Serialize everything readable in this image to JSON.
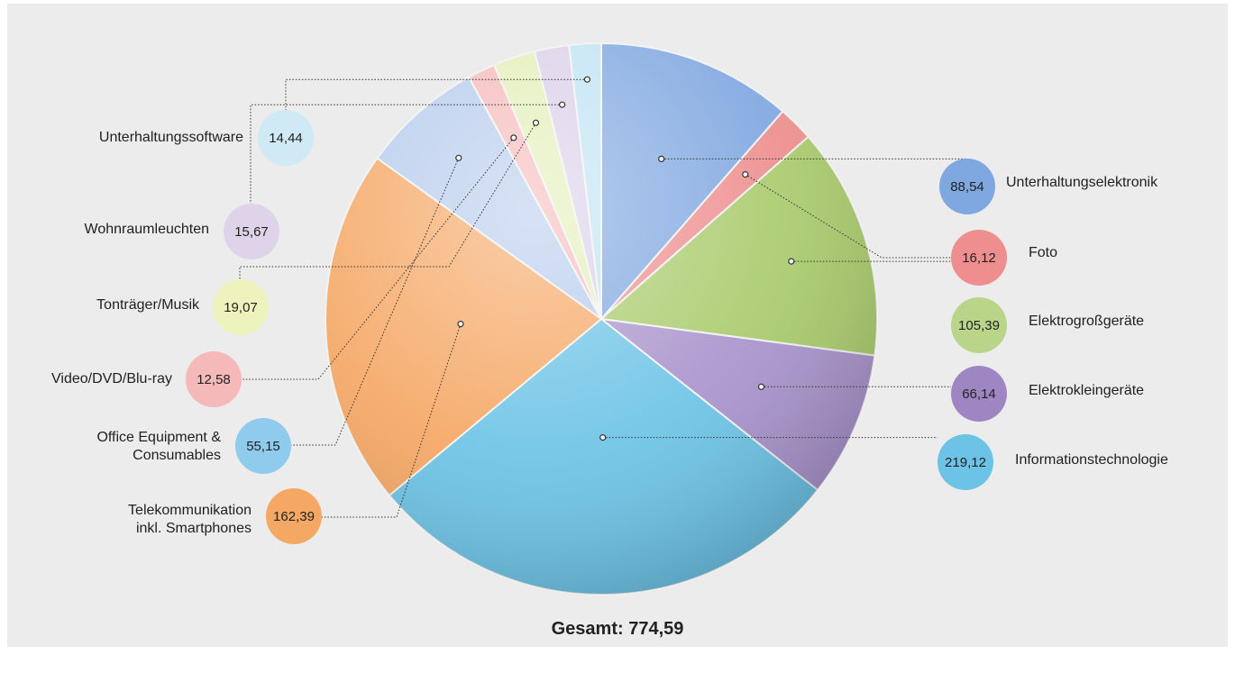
{
  "chart_data": {
    "type": "pie",
    "total_label": "Gesamt: 774,59",
    "slices": [
      {
        "name": "Unterhaltungselektronik",
        "value": 88.54,
        "value_label": "88,54",
        "color": "#7fa7e0"
      },
      {
        "name": "Foto",
        "value": 16.12,
        "value_label": "16,12",
        "color": "#ee8e8e"
      },
      {
        "name": "Elektrogroßgeräte",
        "value": 105.39,
        "value_label": "105,39",
        "color": "#a9cb6c"
      },
      {
        "name": "Elektrokleingeräte",
        "value": 66.14,
        "value_label": "66,14",
        "color": "#a993cc"
      },
      {
        "name": "Informationstechnologie",
        "value": 219.12,
        "value_label": "219,12",
        "color": "#6cc3e6"
      },
      {
        "name": "Telekommunikation inkl. Smartphones",
        "value": 162.39,
        "value_label": "162,39",
        "color": "#f5a764"
      },
      {
        "name": "Office Equipment & Consumables",
        "value": 55.15,
        "value_label": "55,15",
        "color": "#b6cbec"
      },
      {
        "name": "Video/DVD/Blu-ray",
        "value": 12.58,
        "value_label": "12,58",
        "color": "#f5b9b9"
      },
      {
        "name": "Tonträger/Musik",
        "value": 19.07,
        "value_label": "19,07",
        "color": "#e2eeb6"
      },
      {
        "name": "Wohnraumleuchten",
        "value": 15.67,
        "value_label": "15,67",
        "color": "#dacfe8"
      },
      {
        "name": "Unterhaltungssoftware",
        "value": 14.44,
        "value_label": "14,44",
        "color": "#bfe3f2"
      }
    ]
  },
  "labels": [
    {
      "text": "Unterhaltungselektronik",
      "badge": "88,54",
      "color": "#7fa7e0"
    },
    {
      "text": "Foto",
      "badge": "16,12",
      "color": "#ee8e8e"
    },
    {
      "text": "Elektrogroßgeräte",
      "badge": "105,39",
      "color": "#b8d58a"
    },
    {
      "text": "Elektrokleingeräte",
      "badge": "66,14",
      "color": "#9d86c2"
    },
    {
      "text": "Informationstechnologie",
      "badge": "219,12",
      "color": "#6cc3e6"
    },
    {
      "text": "Telekommunikation\ninkl. Smartphones",
      "badge": "162,39",
      "color": "#f5a764"
    },
    {
      "text": "Office Equipment &\nConsumables",
      "badge": "55,15",
      "color": "#8fcbec"
    },
    {
      "text": "Video/DVD/Blu-ray",
      "badge": "12,58",
      "color": "#f5b9b9"
    },
    {
      "text": "Tonträger/Musik",
      "badge": "19,07",
      "color": "#eef3bd"
    },
    {
      "text": "Wohnraumleuchten",
      "badge": "15,67",
      "color": "#dfd3ea"
    },
    {
      "text": "Unterhaltungssoftware",
      "badge": "14,44",
      "color": "#cfeaf5"
    }
  ]
}
